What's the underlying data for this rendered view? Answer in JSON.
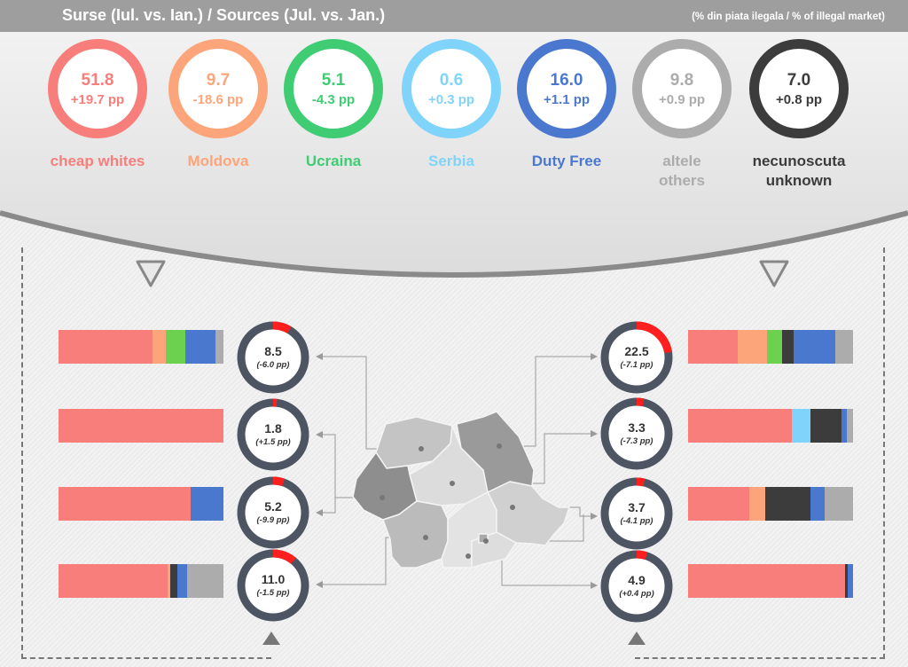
{
  "header": {
    "title": "Surse (Iul. vs. Ian.) / Sources (Jul. vs. Jan.)",
    "unit": "(% din piata ilegala / % of illegal market)"
  },
  "chart_data": [
    {
      "type": "donut",
      "title": "Surse (Iul. vs. Ian.) / Sources (Jul. vs. Jan.)",
      "unit": "(% din piata ilegala / % of illegal market)",
      "sources": [
        {
          "label": [
            "cheap whites"
          ],
          "value": "51.8",
          "change": "+19.7 pp",
          "color": "#f77e7b"
        },
        {
          "label": [
            "Moldova"
          ],
          "value": "9.7",
          "change": "-18.6 pp",
          "color": "#fca57a"
        },
        {
          "label": [
            "Ucraina"
          ],
          "value": "5.1",
          "change": "-4.3 pp",
          "color": "#3fcc73"
        },
        {
          "label": [
            "Serbia"
          ],
          "value": "0.6",
          "change": "+0.3 pp",
          "color": "#80d4fb"
        },
        {
          "label": [
            "Duty Free"
          ],
          "value": "16.0",
          "change": "+1.1 pp",
          "color": "#4a78cf"
        },
        {
          "label": [
            "altele",
            "others"
          ],
          "value": "9.8",
          "change": "+0.9 pp",
          "color": "#acacac"
        },
        {
          "label": [
            "necunoscuta",
            "unknown"
          ],
          "value": "7.0",
          "change": "+0.8 pp",
          "color": "#3c3c3c"
        }
      ]
    },
    {
      "type": "donut",
      "regions": [
        {
          "value": 8.5,
          "value_text": "8.5",
          "change": "(-6.0 pp)"
        },
        {
          "value": 1.8,
          "value_text": "1.8",
          "change": "(+1.5 pp)"
        },
        {
          "value": 5.2,
          "value_text": "5.2",
          "change": "(-9.9 pp)"
        },
        {
          "value": 11.0,
          "value_text": "11.0",
          "change": "(-1.5 pp)"
        },
        {
          "value": 22.5,
          "value_text": "22.5",
          "change": "(-7.1 pp)"
        },
        {
          "value": 3.3,
          "value_text": "3.3",
          "change": "(-7.3 pp)"
        },
        {
          "value": 3.7,
          "value_text": "3.7",
          "change": "(-4.1 pp)"
        },
        {
          "value": 4.9,
          "value_text": "4.9",
          "change": "(+0.4 pp)"
        }
      ]
    },
    {
      "type": "bar",
      "orientation": "horizontal",
      "stacked": true,
      "bars": [
        [
          {
            "color": "#f77e7b",
            "value": 57
          },
          {
            "color": "#fca57a",
            "value": 8
          },
          {
            "color": "#6bd14e",
            "value": 12
          },
          {
            "color": "#4a78cf",
            "value": 18
          },
          {
            "color": "#acacac",
            "value": 5
          }
        ],
        [
          {
            "color": "#f77e7b",
            "value": 100
          }
        ],
        [
          {
            "color": "#f77e7b",
            "value": 80
          },
          {
            "color": "#4a78cf",
            "value": 20
          }
        ],
        [
          {
            "color": "#f77e7b",
            "value": 66
          },
          {
            "color": "#fca57a",
            "value": 2
          },
          {
            "color": "#3c3c3c",
            "value": 4
          },
          {
            "color": "#4a78cf",
            "value": 6
          },
          {
            "color": "#acacac",
            "value": 22
          }
        ],
        [
          {
            "color": "#f77e7b",
            "value": 30
          },
          {
            "color": "#fca57a",
            "value": 18
          },
          {
            "color": "#6bd14e",
            "value": 9
          },
          {
            "color": "#3c3c3c",
            "value": 7
          },
          {
            "color": "#4a78cf",
            "value": 25
          },
          {
            "color": "#acacac",
            "value": 11
          }
        ],
        [
          {
            "color": "#f77e7b",
            "value": 63
          },
          {
            "color": "#80d4fb",
            "value": 11
          },
          {
            "color": "#3c3c3c",
            "value": 19
          },
          {
            "color": "#4a78cf",
            "value": 3
          },
          {
            "color": "#acacac",
            "value": 4
          }
        ],
        [
          {
            "color": "#f77e7b",
            "value": 37
          },
          {
            "color": "#fca57a",
            "value": 10
          },
          {
            "color": "#3c3c3c",
            "value": 27
          },
          {
            "color": "#4a78cf",
            "value": 9
          },
          {
            "color": "#acacac",
            "value": 17
          }
        ],
        [
          {
            "color": "#f77e7b",
            "value": 95
          },
          {
            "color": "#3c3c3c",
            "value": 2
          },
          {
            "color": "#4a78cf",
            "value": 3
          }
        ]
      ]
    }
  ]
}
